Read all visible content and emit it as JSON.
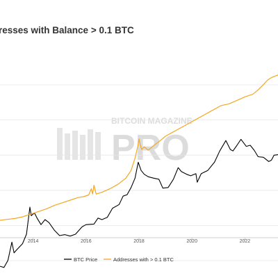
{
  "chart_data": {
    "type": "line",
    "title": "resses with Balance > 0.1 BTC",
    "x_tick_labels": [
      "2014",
      "2016",
      "2018",
      "2020",
      "2022"
    ],
    "xlim": [
      2012.75,
      2023.25
    ],
    "grid": "horizontal",
    "legend_position": "bottom-center",
    "watermark": {
      "line1": "BITCOIN MAGAZINE",
      "line2": "PRO"
    },
    "series": [
      {
        "name": "BTC Price",
        "color": "#000000",
        "axis": "log",
        "points": [
          [
            2012.75,
            0.3
          ],
          [
            2012.9,
            0.28
          ],
          [
            2013.05,
            0.42
          ],
          [
            2013.2,
            1.2
          ],
          [
            2013.28,
            0.65
          ],
          [
            2013.4,
            0.8
          ],
          [
            2013.6,
            1.1
          ],
          [
            2013.75,
            1.9
          ],
          [
            2013.88,
            9.0
          ],
          [
            2013.93,
            5.5
          ],
          [
            2014.05,
            6.5
          ],
          [
            2014.15,
            4.8
          ],
          [
            2014.3,
            3.3
          ],
          [
            2014.45,
            4.4
          ],
          [
            2014.6,
            3.7
          ],
          [
            2014.8,
            2.4
          ],
          [
            2015.0,
            1.75
          ],
          [
            2015.2,
            1.85
          ],
          [
            2015.4,
            1.7
          ],
          [
            2015.6,
            1.9
          ],
          [
            2015.85,
            2.9
          ],
          [
            2016.0,
            3.3
          ],
          [
            2016.3,
            3.4
          ],
          [
            2016.45,
            4.8
          ],
          [
            2016.6,
            4.4
          ],
          [
            2016.8,
            5.0
          ],
          [
            2017.0,
            8.5
          ],
          [
            2017.25,
            10.5
          ],
          [
            2017.4,
            17.0
          ],
          [
            2017.55,
            18.5
          ],
          [
            2017.7,
            28.0
          ],
          [
            2017.85,
            48.0
          ],
          [
            2017.97,
            120.0
          ],
          [
            2018.08,
            75.0
          ],
          [
            2018.2,
            60.0
          ],
          [
            2018.35,
            52.0
          ],
          [
            2018.55,
            48.0
          ],
          [
            2018.75,
            45.0
          ],
          [
            2018.9,
            27.0
          ],
          [
            2019.1,
            28.0
          ],
          [
            2019.3,
            45.0
          ],
          [
            2019.48,
            88.0
          ],
          [
            2019.6,
            70.0
          ],
          [
            2019.8,
            60.0
          ],
          [
            2019.95,
            55.0
          ],
          [
            2020.15,
            62.0
          ],
          [
            2020.2,
            38.0
          ],
          [
            2020.35,
            62.0
          ],
          [
            2020.6,
            75.0
          ],
          [
            2020.85,
            120.0
          ],
          [
            2021.05,
            230.0
          ],
          [
            2021.28,
            420.0
          ],
          [
            2021.45,
            250.0
          ],
          [
            2021.55,
            230.0
          ],
          [
            2021.7,
            320.0
          ],
          [
            2021.85,
            450.0
          ],
          [
            2022.05,
            300.0
          ],
          [
            2022.2,
            320.0
          ],
          [
            2022.35,
            240.0
          ],
          [
            2022.5,
            165.0
          ],
          [
            2022.7,
            160.0
          ],
          [
            2022.9,
            125.0
          ],
          [
            2023.0,
            135.0
          ],
          [
            2023.1,
            180.0
          ],
          [
            2023.25,
            185.0
          ]
        ]
      },
      {
        "name": "Addresses with > 0.1 BTC",
        "color": "#f5a623",
        "axis": "linear",
        "points": [
          [
            2012.75,
            0.0
          ],
          [
            2013.0,
            0.01
          ],
          [
            2013.3,
            0.02
          ],
          [
            2013.6,
            0.04
          ],
          [
            2013.9,
            0.07
          ],
          [
            2014.2,
            0.1
          ],
          [
            2014.5,
            0.13
          ],
          [
            2014.8,
            0.17
          ],
          [
            2015.1,
            0.2
          ],
          [
            2015.4,
            0.23
          ],
          [
            2015.7,
            0.26
          ],
          [
            2015.9,
            0.27
          ],
          [
            2016.1,
            0.29
          ],
          [
            2016.2,
            0.36
          ],
          [
            2016.25,
            0.3
          ],
          [
            2016.3,
            0.4
          ],
          [
            2016.38,
            0.3
          ],
          [
            2016.6,
            0.32
          ],
          [
            2016.9,
            0.36
          ],
          [
            2017.2,
            0.41
          ],
          [
            2017.5,
            0.48
          ],
          [
            2017.7,
            0.57
          ],
          [
            2017.85,
            0.71
          ],
          [
            2017.95,
            0.84
          ],
          [
            2018.0,
            0.93
          ],
          [
            2018.05,
            0.86
          ],
          [
            2018.1,
            0.81
          ],
          [
            2018.2,
            0.84
          ],
          [
            2018.35,
            0.8
          ],
          [
            2018.5,
            0.84
          ],
          [
            2018.8,
            0.91
          ],
          [
            2019.0,
            0.96
          ],
          [
            2019.3,
            1.01
          ],
          [
            2019.6,
            1.06
          ],
          [
            2019.9,
            1.11
          ],
          [
            2020.2,
            1.16
          ],
          [
            2020.5,
            1.21
          ],
          [
            2020.8,
            1.26
          ],
          [
            2021.1,
            1.31
          ],
          [
            2021.4,
            1.33
          ],
          [
            2021.7,
            1.37
          ],
          [
            2022.0,
            1.41
          ],
          [
            2022.3,
            1.44
          ],
          [
            2022.5,
            1.49
          ],
          [
            2022.7,
            1.55
          ],
          [
            2022.85,
            1.6
          ],
          [
            2023.0,
            1.63
          ],
          [
            2023.25,
            1.66
          ]
        ]
      }
    ]
  }
}
